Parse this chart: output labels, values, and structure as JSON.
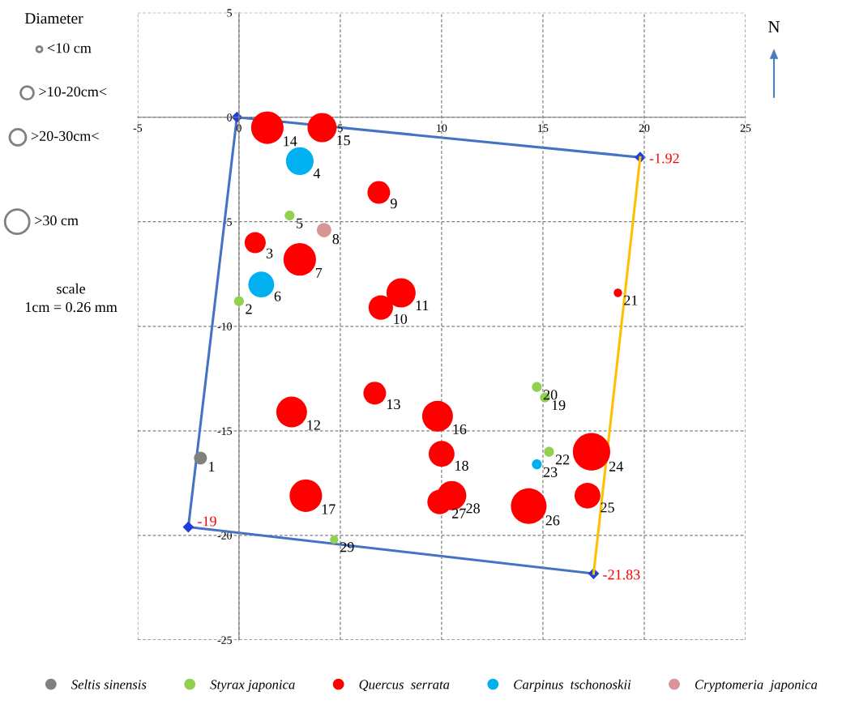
{
  "chart_data": {
    "type": "bubble",
    "xlim": [
      -5,
      25
    ],
    "xticks": [
      -5,
      0,
      5,
      10,
      15,
      20,
      25
    ],
    "ylim": [
      -25,
      5
    ],
    "yticks": [
      -25,
      -20,
      -15,
      -10,
      -5,
      0,
      5
    ],
    "grid": true,
    "legend": "bottom",
    "series": [
      {
        "name": "Seltis sinensis",
        "color": "#808080",
        "x": [
          -1.9
        ],
        "values": [
          -16.3
        ],
        "sizes": [
          0.12
        ]
      },
      {
        "name": "Styrax japonica",
        "color": "#92d050",
        "x": [
          2.5,
          0.0,
          14.7,
          15.1,
          15.3,
          4.7
        ],
        "values": [
          -4.7,
          -8.8,
          -12.9,
          -13.4,
          -16.0,
          -20.2
        ],
        "sizes": [
          0.07,
          0.07,
          0.07,
          0.07,
          0.07,
          0.05
        ]
      },
      {
        "name": "Quercus  serrata",
        "color": "#ff0000",
        "x": [
          1.4,
          4.1,
          6.9,
          0.8,
          3.0,
          7.0,
          8.0,
          18.7,
          6.7,
          2.6,
          9.8,
          10.0,
          3.3,
          9.9,
          10.5,
          17.4,
          17.2,
          14.3
        ],
        "values": [
          -0.5,
          -0.5,
          -3.6,
          -6.0,
          -6.8,
          -9.1,
          -8.4,
          -8.4,
          -13.2,
          -14.1,
          -14.3,
          -16.1,
          -18.1,
          -18.4,
          -18.1,
          -16.0,
          -18.1,
          -18.6
        ],
        "sizes": [
          0.76,
          0.61,
          0.37,
          0.32,
          0.76,
          0.43,
          0.61,
          0.05,
          0.37,
          0.68,
          0.68,
          0.48,
          0.76,
          0.43,
          0.61,
          1.0,
          0.48,
          0.91
        ]
      },
      {
        "name": "Carpinus  tschonoskii",
        "color": "#00b0f0",
        "x": [
          3.0,
          1.1,
          14.7
        ],
        "values": [
          -2.1,
          -8.0,
          -16.6
        ],
        "sizes": [
          0.55,
          0.48,
          0.07
        ]
      },
      {
        "name": "Cryptomeria  japonica",
        "color": "#da9694",
        "x": [
          4.2
        ],
        "values": [
          -5.4
        ],
        "sizes": [
          0.15
        ]
      },
      {
        "type": "line",
        "color": "#4472c4",
        "marker": "diamond",
        "x": [
          17.5,
          -2.5,
          -0.1,
          19.8
        ],
        "values": [
          -21.83,
          -19.6,
          0,
          -1.92
        ],
        "value_labels": [
          "-21.83",
          null,
          null,
          "-1.92"
        ]
      },
      {
        "type": "line",
        "color": "#ffc000",
        "x": [
          19.8,
          17.5
        ],
        "values": [
          -1.92,
          -21.83
        ]
      }
    ],
    "annotations": [
      {
        "text": "-19",
        "x": -2.5,
        "y": -19.6
      },
      {
        "text": "1",
        "x": -1.9,
        "y": -16.3
      },
      {
        "text": "2",
        "x": 0.0,
        "y": -8.8
      },
      {
        "text": "3",
        "x": 0.8,
        "y": -6.0
      },
      {
        "text": "4",
        "x": 3.0,
        "y": -2.1
      },
      {
        "text": "5",
        "x": 2.5,
        "y": -4.7
      },
      {
        "text": "6",
        "x": 1.1,
        "y": -8.0
      },
      {
        "text": "7",
        "x": 3.0,
        "y": -6.8
      },
      {
        "text": "8",
        "x": 4.2,
        "y": -5.4
      },
      {
        "text": "9",
        "x": 6.9,
        "y": -3.6
      },
      {
        "text": "10",
        "x": 7.0,
        "y": -9.1
      },
      {
        "text": "11",
        "x": 8.0,
        "y": -8.4
      },
      {
        "text": "12",
        "x": 2.6,
        "y": -14.1
      },
      {
        "text": "13",
        "x": 6.7,
        "y": -13.2
      },
      {
        "text": "14",
        "x": 1.4,
        "y": -0.5
      },
      {
        "text": "15",
        "x": 4.1,
        "y": -0.5
      },
      {
        "text": "16",
        "x": 9.8,
        "y": -14.3
      },
      {
        "text": "17",
        "x": 3.3,
        "y": -18.1
      },
      {
        "text": "18",
        "x": 10.0,
        "y": -16.1
      },
      {
        "text": "19",
        "x": 15.1,
        "y": -13.4
      },
      {
        "text": "20",
        "x": 14.7,
        "y": -12.9
      },
      {
        "text": "21",
        "x": 18.7,
        "y": -8.4
      },
      {
        "text": "22",
        "x": 15.3,
        "y": -16.0
      },
      {
        "text": "23",
        "x": 14.7,
        "y": -16.6
      },
      {
        "text": "24",
        "x": 17.4,
        "y": -16.0
      },
      {
        "text": "25",
        "x": 17.2,
        "y": -18.1
      },
      {
        "text": "26",
        "x": 14.3,
        "y": -18.6
      },
      {
        "text": "27",
        "x": 9.9,
        "y": -18.4
      },
      {
        "text": "28",
        "x": 10.5,
        "y": -18.1
      },
      {
        "text": "29",
        "x": 4.7,
        "y": -20.2
      },
      "Diameter",
      "<10 cm",
      ">10-20cm<",
      ">20-30cm<",
      ">30 cm",
      "scale",
      "1cm = 0.26 mm",
      "N"
    ]
  }
}
